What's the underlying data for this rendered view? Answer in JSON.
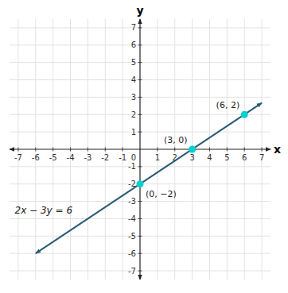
{
  "chart_data": {
    "type": "scatter",
    "x_label": "x",
    "y_label": "y",
    "xlim": [
      -7.5,
      7.5
    ],
    "ylim": [
      -7.5,
      7.5
    ],
    "xticks": [
      -7,
      -6,
      -5,
      -4,
      -3,
      -2,
      -1,
      1,
      2,
      3,
      4,
      5,
      6,
      7
    ],
    "yticks": [
      -7,
      -6,
      -5,
      -4,
      -3,
      -2,
      -1,
      1,
      2,
      3,
      4,
      5,
      6,
      7
    ],
    "grid": true,
    "series": [
      {
        "type": "line",
        "color": "#2A5A78",
        "x": [
          -6.0,
          7.0
        ],
        "values": [
          -6.0,
          2.6666666666666665
        ]
      },
      {
        "type": "scatter",
        "color": "#00D0D0",
        "data_labels": true,
        "x": [
          0,
          3,
          6
        ],
        "values": [
          -2,
          0,
          2
        ],
        "value_labels": [
          "(0, −2)",
          "(3, 0)",
          "(6, 2)"
        ]
      }
    ],
    "annotations": [
      {
        "text": "0",
        "x": 0,
        "y": 0
      },
      {
        "text": "2x − 3y = 6",
        "x": -7.2,
        "y": -3.5
      }
    ]
  }
}
